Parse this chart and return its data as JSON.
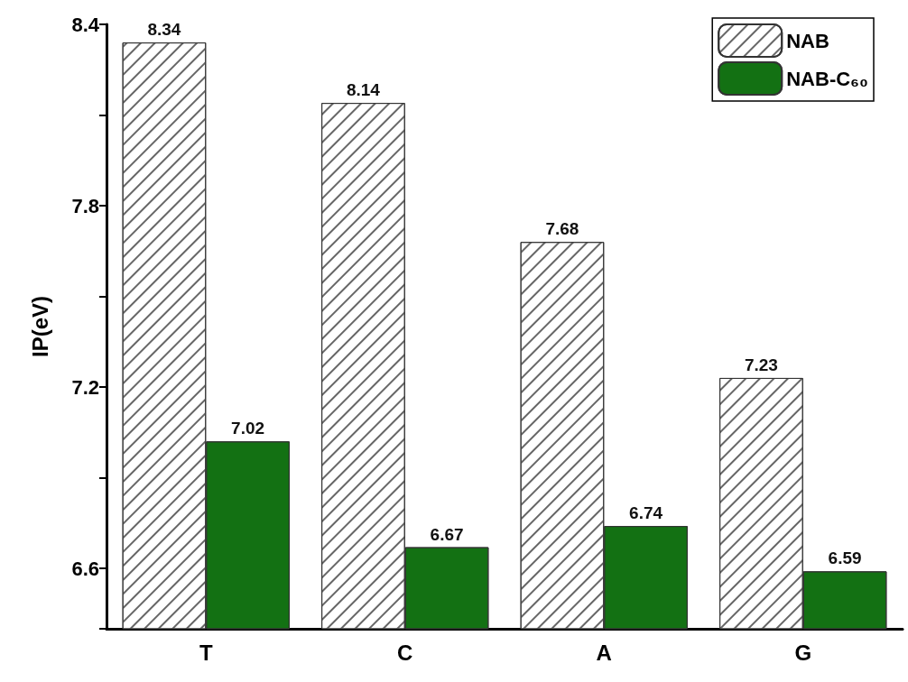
{
  "chart_data": {
    "type": "bar",
    "ylabel": "IP(eV)",
    "categories": [
      "T",
      "C",
      "A",
      "G"
    ],
    "series": [
      {
        "name": "NAB",
        "color": "#ffffff",
        "values": [
          8.34,
          8.14,
          7.68,
          7.23
        ]
      },
      {
        "name": "NAB-C₆₀",
        "color": "#137113",
        "values": [
          7.02,
          6.67,
          6.74,
          6.59
        ]
      }
    ],
    "ylim": [
      6.4,
      8.4
    ],
    "yticks": [
      {
        "value": 6.4,
        "label": null
      },
      6.6,
      {
        "value": 6.9,
        "label": null
      },
      7.2,
      {
        "value": 7.5,
        "label": null
      },
      7.8,
      {
        "value": 8.1,
        "label": null
      },
      8.4
    ],
    "data_labels": true,
    "grid": false,
    "legend": "top right"
  }
}
